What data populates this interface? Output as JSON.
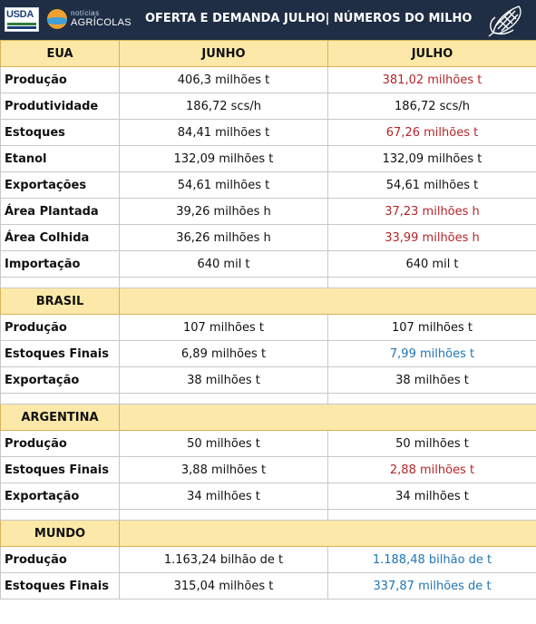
{
  "header": {
    "usda_logo": "USDA",
    "na_logo_top": "notícias",
    "na_logo_bottom": "AGRÍCOLAS",
    "title": "OFERTA E DEMANDA JULHO| NÚMEROS DO MILHO",
    "corn_icon": "corn-icon"
  },
  "colors": {
    "header_bg": "#1f2e44",
    "section_bg": "#fce8a8",
    "decrease": "#b3262a",
    "increase": "#2176b5"
  },
  "columns": {
    "region": "EUA",
    "june": "JUNHO",
    "july": "JULHO"
  },
  "sections": [
    {
      "name": "EUA",
      "rows": [
        {
          "label": "Produção",
          "june": "406,3 milhões t",
          "july": "381,02 milhões t",
          "july_change": "down"
        },
        {
          "label": "Produtividade",
          "june": "186,72 scs/h",
          "july": "186,72 scs/h",
          "july_change": "none"
        },
        {
          "label": "Estoques",
          "june": "84,41 milhões t",
          "july": "67,26 milhões t",
          "july_change": "down"
        },
        {
          "label": "Etanol",
          "june": "132,09 milhões t",
          "july": "132,09 milhões t",
          "july_change": "none"
        },
        {
          "label": "Exportações",
          "june": "54,61 milhões t",
          "july": "54,61 milhões t",
          "july_change": "none"
        },
        {
          "label": "Área Plantada",
          "june": "39,26 milhões h",
          "july": "37,23 milhões h",
          "july_change": "down"
        },
        {
          "label": "Área Colhida",
          "june": "36,26 milhões h",
          "july": "33,99 milhões h",
          "july_change": "down"
        },
        {
          "label": "Importação",
          "june": "640 mil t",
          "july": "640 mil t",
          "july_change": "none"
        }
      ]
    },
    {
      "name": "BRASIL",
      "rows": [
        {
          "label": "Produção",
          "june": "107 milhões t",
          "july": "107 milhões t",
          "july_change": "none"
        },
        {
          "label": "Estoques Finais",
          "june": "6,89 milhões t",
          "july": "7,99 milhões t",
          "july_change": "up"
        },
        {
          "label": "Exportação",
          "june": "38  milhões t",
          "july": "38 milhões t",
          "july_change": "none"
        }
      ]
    },
    {
      "name": "ARGENTINA",
      "rows": [
        {
          "label": "Produção",
          "june": "50 milhões t",
          "july": "50 milhões t",
          "july_change": "none"
        },
        {
          "label": "Estoques Finais",
          "june": "3,88 milhões t",
          "july": "2,88 milhões t",
          "july_change": "down"
        },
        {
          "label": "Exportação",
          "june": "34 milhões t",
          "july": "34 milhões t",
          "july_change": "none"
        }
      ]
    },
    {
      "name": "MUNDO",
      "rows": [
        {
          "label": "Produção",
          "june": "1.163,24 bilhão de t",
          "july": "1.188,48 bilhão de t",
          "july_change": "up"
        },
        {
          "label": "Estoques Finais",
          "june": "315,04 milhões t",
          "july": "337,87 milhões de t",
          "july_change": "up"
        }
      ]
    }
  ]
}
